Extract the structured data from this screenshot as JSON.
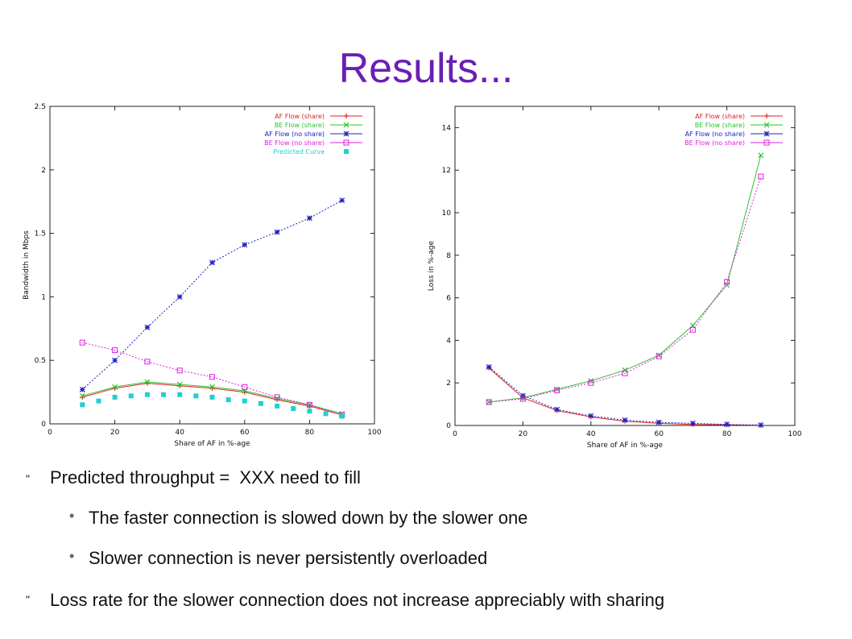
{
  "slide": {
    "title": "Results...",
    "bullets": [
      {
        "marker": "\"",
        "text": "Predicted throughput =  XXX need to fill"
      },
      {
        "marker": "•",
        "text": "The faster connection is slowed down by the slower one"
      },
      {
        "marker": "•",
        "text": "Slower connection is never persistently overloaded"
      },
      {
        "marker": "\"",
        "text": "Loss rate for the slower connection does not increase appreciably with sharing"
      }
    ]
  },
  "chart_data": [
    {
      "type": "line",
      "xlabel": "Share of AF in %-age",
      "ylabel": "Bandwidth in Mbps",
      "xlim": [
        0,
        100
      ],
      "ylim": [
        0,
        2.5
      ],
      "xticks": [
        "0",
        "20",
        "40",
        "60",
        "80",
        "100"
      ],
      "yticks": [
        "0",
        "0.5",
        "1",
        "1.5",
        "2",
        "2.5"
      ],
      "legend_position": "top-right",
      "series": [
        {
          "name": "AF Flow (share)",
          "color": "#e02020",
          "marker": "+",
          "x": [
            10,
            20,
            30,
            40,
            50,
            60,
            70,
            80,
            90
          ],
          "values": [
            0.21,
            0.28,
            0.32,
            0.3,
            0.28,
            0.25,
            0.19,
            0.14,
            0.07
          ]
        },
        {
          "name": "BE Flow (share)",
          "color": "#30c030",
          "marker": "x",
          "x": [
            10,
            20,
            30,
            40,
            50,
            60,
            70,
            80,
            90
          ],
          "values": [
            0.22,
            0.29,
            0.33,
            0.31,
            0.29,
            0.26,
            0.2,
            0.15,
            0.08
          ]
        },
        {
          "name": "AF Flow (no share)",
          "color": "#2020c0",
          "marker": "*",
          "x": [
            10,
            20,
            30,
            40,
            50,
            60,
            70,
            80,
            90
          ],
          "values": [
            0.27,
            0.5,
            0.76,
            1.0,
            1.27,
            1.41,
            1.51,
            1.62,
            1.76
          ]
        },
        {
          "name": "BE Flow (no share)",
          "color": "#e020e0",
          "marker": "square",
          "x": [
            10,
            20,
            30,
            40,
            50,
            60,
            70,
            80,
            90
          ],
          "values": [
            0.64,
            0.58,
            0.49,
            0.42,
            0.37,
            0.29,
            0.21,
            0.15,
            0.07
          ]
        },
        {
          "name": "Predicted Curve",
          "color": "#20d0d0",
          "marker": "filled-square",
          "x": [
            10,
            15,
            20,
            25,
            30,
            35,
            40,
            45,
            50,
            55,
            60,
            65,
            70,
            75,
            80,
            85,
            90
          ],
          "values": [
            0.15,
            0.18,
            0.21,
            0.22,
            0.23,
            0.23,
            0.23,
            0.22,
            0.21,
            0.19,
            0.18,
            0.16,
            0.14,
            0.12,
            0.1,
            0.08,
            0.06
          ]
        }
      ]
    },
    {
      "type": "line",
      "xlabel": "Share of AF in %-age",
      "ylabel": "Loss in %-age",
      "xlim": [
        0,
        100
      ],
      "ylim": [
        0,
        15
      ],
      "xticks": [
        "0",
        "20",
        "40",
        "60",
        "80",
        "100"
      ],
      "yticks": [
        "0",
        "2",
        "4",
        "6",
        "8",
        "10",
        "12",
        "14"
      ],
      "legend_position": "top-right",
      "series": [
        {
          "name": "AF Flow (share)",
          "color": "#e02020",
          "marker": "+",
          "x": [
            10,
            20,
            30,
            40,
            50,
            60,
            70,
            80,
            90
          ],
          "values": [
            2.7,
            1.3,
            0.7,
            0.4,
            0.2,
            0.1,
            0.05,
            0.03,
            0.01
          ]
        },
        {
          "name": "BE Flow (share)",
          "color": "#30c030",
          "marker": "x",
          "x": [
            10,
            20,
            30,
            40,
            50,
            60,
            70,
            80,
            90
          ],
          "values": [
            1.1,
            1.3,
            1.7,
            2.1,
            2.6,
            3.3,
            4.7,
            6.6,
            12.7
          ]
        },
        {
          "name": "AF Flow (no share)",
          "color": "#2020c0",
          "marker": "*",
          "x": [
            10,
            20,
            30,
            40,
            50,
            60,
            70,
            80,
            90
          ],
          "values": [
            2.75,
            1.4,
            0.75,
            0.45,
            0.25,
            0.15,
            0.1,
            0.05,
            0.02
          ]
        },
        {
          "name": "BE Flow (no share)",
          "color": "#e020e0",
          "marker": "square",
          "x": [
            10,
            20,
            30,
            40,
            50,
            60,
            70,
            80,
            90
          ],
          "values": [
            1.1,
            1.25,
            1.65,
            2.0,
            2.45,
            3.25,
            4.5,
            6.75,
            11.7
          ]
        }
      ]
    }
  ]
}
